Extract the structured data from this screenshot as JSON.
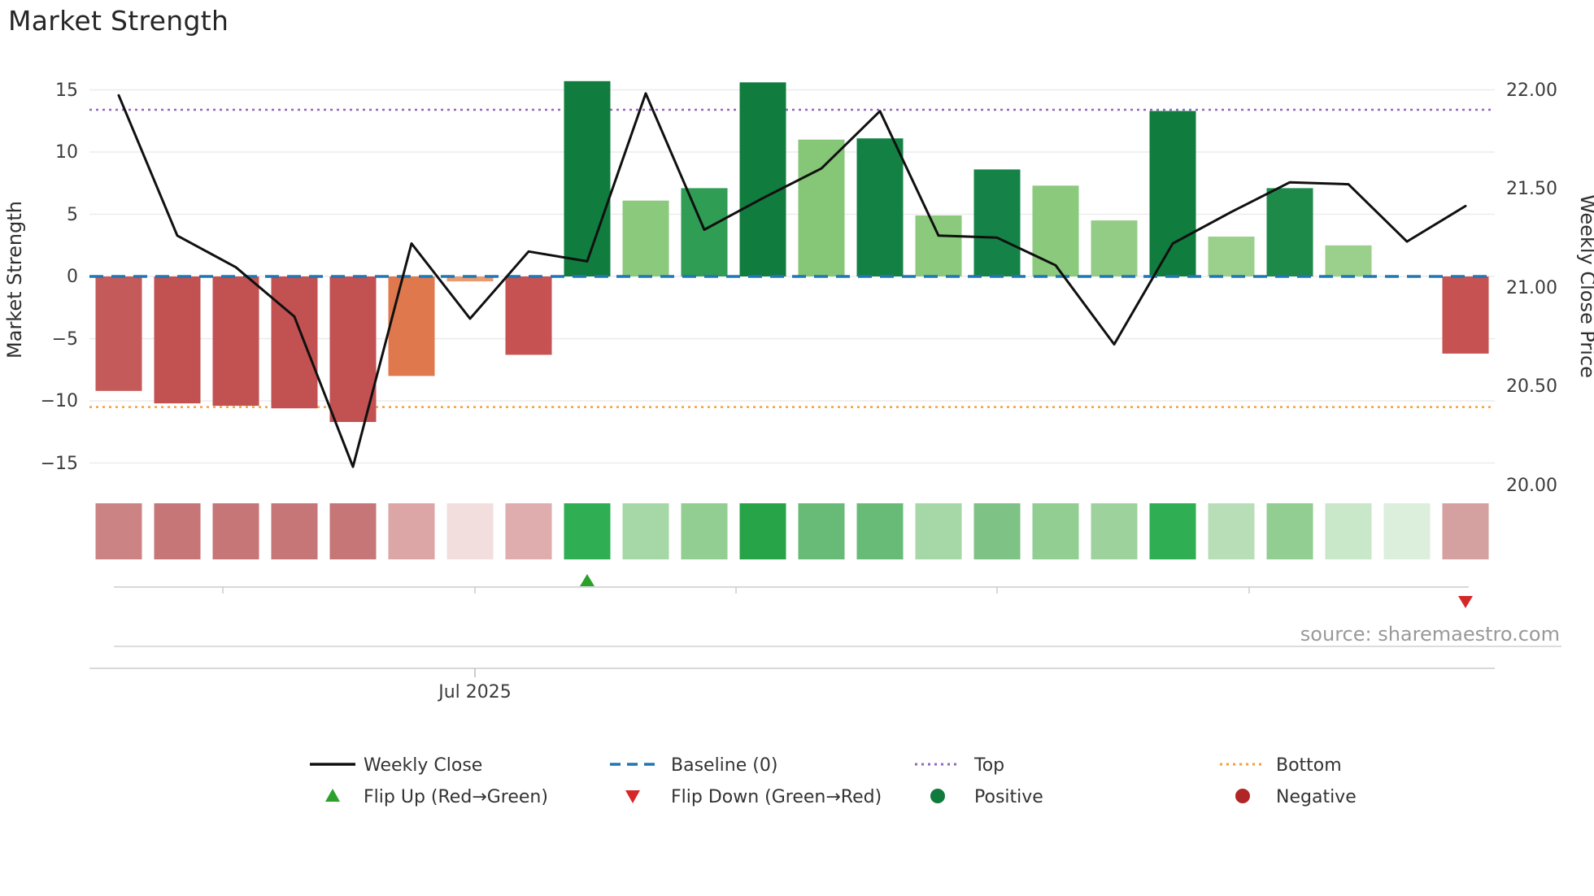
{
  "header": {
    "title": "Market Strength"
  },
  "axes": {
    "left_title": "Market Strength",
    "right_title": "Weekly Close Price",
    "left_ticks": [
      "15",
      "10",
      "5",
      "0",
      "−5",
      "−10",
      "−15"
    ],
    "left_tick_values": [
      15,
      10,
      5,
      0,
      -5,
      -10,
      -15
    ],
    "right_ticks": [
      "22.00",
      "21.50",
      "21.00",
      "20.50",
      "20.00"
    ],
    "right_tick_values": [
      22.0,
      21.5,
      21.0,
      20.5,
      20.0
    ],
    "x_tick_label": "Jul 2025"
  },
  "source_text": "source: sharemaestro.com",
  "chart_data": {
    "type": "bar+line",
    "title": "Market Strength",
    "x_count": 24,
    "x_tick_label": "Jul 2025",
    "bars": {
      "name": "Market Strength",
      "axis": "left",
      "axis_range": [
        -17,
        17
      ],
      "values": [
        -9.2,
        -10.2,
        -10.4,
        -10.6,
        -11.7,
        -8.0,
        -0.4,
        -6.3,
        15.7,
        6.1,
        7.1,
        15.6,
        11.0,
        11.1,
        4.9,
        8.6,
        7.3,
        4.5,
        13.3,
        3.2,
        7.1,
        2.5,
        0.0,
        -6.2
      ],
      "colors": [
        "#c45a5a",
        "#c25151",
        "#c25151",
        "#c25151",
        "#c25151",
        "#e0784e",
        "#e89b70",
        "#c65252",
        "#107c3e",
        "#8bc97d",
        "#2f9d53",
        "#107c3e",
        "#85c677",
        "#148144",
        "#8bc97d",
        "#158347",
        "#8bc97d",
        "#93cd85",
        "#107c3e",
        "#9ad08b",
        "#1d8a4a",
        "#9ad08b",
        "#cfe9cf",
        "#c65252"
      ]
    },
    "line": {
      "name": "Weekly Close",
      "axis": "right",
      "axis_range": [
        20.0,
        22.0
      ],
      "color": "#101010",
      "prices": [
        21.97,
        21.26,
        21.1,
        20.85,
        20.09,
        21.22,
        20.84,
        21.18,
        21.13,
        21.98,
        21.29,
        21.45,
        21.6,
        21.89,
        21.26,
        21.25,
        21.11,
        20.71,
        21.22,
        21.38,
        21.53,
        21.52,
        21.23,
        21.41
      ]
    },
    "reference_lines": {
      "baseline": {
        "label": "Baseline (0)",
        "value": 0,
        "color": "#1f77b4"
      },
      "top": {
        "label": "Top",
        "value": 13.4,
        "color": "#9467bd"
      },
      "bottom": {
        "label": "Bottom",
        "value": -10.5,
        "color": "#f2a13c"
      }
    },
    "heatmap_colors": [
      "#cb8383",
      "#c67676",
      "#c67676",
      "#c67676",
      "#c67676",
      "#dda6a6",
      "#f3dede",
      "#dfadad",
      "#2fae54",
      "#a6d7a6",
      "#92cd92",
      "#27a348",
      "#67bb77",
      "#67bb77",
      "#a6d7a6",
      "#7ec285",
      "#92cd92",
      "#9dd29d",
      "#2fae54",
      "#b8deb8",
      "#92cd92",
      "#c9e7c9",
      "#dceedc",
      "#d5a0a0"
    ],
    "flip_up_index": 8,
    "flip_down_index": 23,
    "marker_colors": {
      "flip_up": "#2ca02c",
      "flip_down": "#d62728"
    }
  },
  "legend": {
    "items": [
      {
        "label": "Weekly Close",
        "type": "line",
        "color": "#111111"
      },
      {
        "label": "Baseline (0)",
        "type": "dashed-line",
        "color": "#1f77b4"
      },
      {
        "label": "Top",
        "type": "dotted-line",
        "color": "#9467bd"
      },
      {
        "label": "Bottom",
        "type": "dotted-line",
        "color": "#f2a13c"
      },
      {
        "label": "Flip Up (Red→Green)",
        "type": "triangle-up",
        "color": "#2ca02c"
      },
      {
        "label": "Flip Down (Green→Red)",
        "type": "triangle-down",
        "color": "#d62728"
      },
      {
        "label": "Positive",
        "type": "circle",
        "color": "#117a3d"
      },
      {
        "label": "Negative",
        "type": "circle",
        "color": "#b02525"
      }
    ]
  }
}
